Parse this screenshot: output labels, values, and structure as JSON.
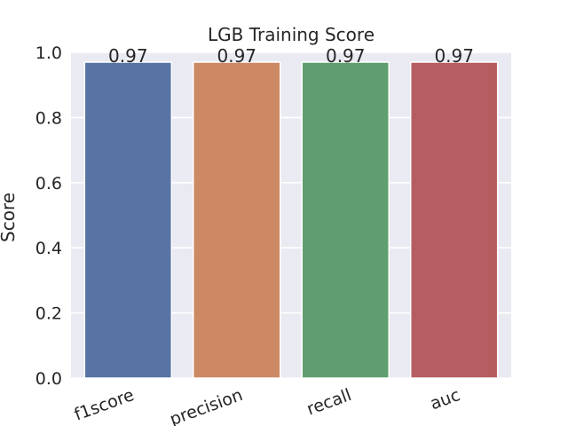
{
  "chart_data": {
    "type": "bar",
    "title": "LGB Training Score",
    "xlabel": "",
    "ylabel": "Score",
    "categories": [
      "f1score",
      "precision",
      "recall",
      "auc"
    ],
    "values": [
      0.97,
      0.97,
      0.97,
      0.97
    ],
    "data_labels": [
      "0.97",
      "0.97",
      "0.97",
      "0.97"
    ],
    "ylim": [
      0,
      1.0
    ],
    "yticks": [
      0.0,
      0.2,
      0.4,
      0.6,
      0.8,
      1.0
    ],
    "ytick_labels": [
      "0.0",
      "0.2",
      "0.4",
      "0.6",
      "0.8",
      "1.0"
    ],
    "grid": true,
    "style": "seaborn-darkgrid",
    "xtick_rotation_deg": 20,
    "colors": {
      "background": "#eaeaf2",
      "grid": "#ffffff",
      "bars": [
        "#5874a5",
        "#cc8963",
        "#5f9e6e",
        "#b55d60"
      ]
    }
  }
}
